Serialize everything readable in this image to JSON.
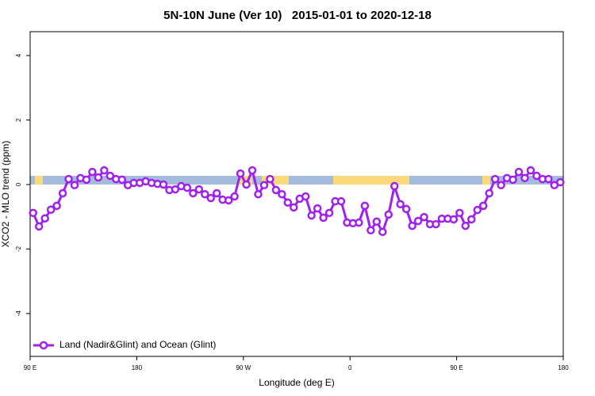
{
  "chart_data": {
    "type": "line",
    "title": "5N-10N June (Ver 10)   2015-01-01 to 2020-12-18",
    "x_label": "Longitude (deg E)",
    "y_label": "XCO2 - MLO trend (ppm)",
    "legend_position": "bottom-left",
    "xlim": [
      90,
      540
    ],
    "ylim": [
      -5.33,
      4.74
    ],
    "xticks": [
      {
        "value": 90,
        "label": "90 E"
      },
      180,
      {
        "value": 270,
        "label": "90 W"
      },
      {
        "value": 360,
        "label": "0"
      },
      {
        "value": 450,
        "label": "90 E"
      },
      {
        "value": 540,
        "label": "180"
      }
    ],
    "yticks": [
      -4,
      -2,
      0,
      2,
      4
    ],
    "x": [
      92.5,
      97.5,
      102.5,
      107.5,
      112.5,
      117.5,
      122.5,
      127.5,
      132.5,
      137.5,
      142.5,
      147.5,
      152.5,
      157.5,
      162.5,
      167.5,
      172.5,
      177.5,
      182.5,
      187.5,
      192.5,
      197.5,
      202.5,
      207.5,
      212.5,
      217.5,
      222.5,
      227.5,
      232.5,
      237.5,
      242.5,
      247.5,
      252.5,
      257.5,
      262.5,
      267.5,
      272.5,
      277.5,
      282.5,
      287.5,
      292.5,
      297.5,
      302.5,
      307.5,
      312.5,
      317.5,
      322.5,
      327.5,
      332.5,
      337.5,
      342.5,
      347.5,
      352.5,
      357.5,
      362.5,
      367.5,
      372.5,
      377.5,
      382.5,
      387.5,
      392.5,
      397.5,
      402.5,
      407.5,
      412.5,
      417.5,
      422.5,
      427.5,
      432.5,
      437.5,
      442.5,
      447.5,
      452.5,
      457.5,
      462.5,
      467.5,
      472.5,
      477.5,
      482.5,
      487.5,
      492.5,
      497.5,
      502.5,
      507.5,
      512.5,
      517.5,
      522.5,
      527.5,
      532.5,
      537.5
    ],
    "series": [
      {
        "name": "Land (Nadir&Glint) and Ocean (Glint)",
        "color": "#a020f0",
        "values": [
          -0.88,
          -1.3,
          -1.05,
          -0.78,
          -0.66,
          -0.27,
          0.17,
          -0.02,
          0.2,
          0.15,
          0.39,
          0.22,
          0.44,
          0.27,
          0.17,
          0.15,
          -0.02,
          0.05,
          0.05,
          0.1,
          0.05,
          0.02,
          0,
          -0.17,
          -0.15,
          -0.05,
          -0.1,
          -0.27,
          -0.15,
          -0.3,
          -0.42,
          -0.27,
          -0.47,
          -0.49,
          -0.37,
          0.34,
          0,
          0.44,
          -0.3,
          -0.02,
          0.17,
          -0.17,
          -0.3,
          -0.56,
          -0.71,
          -0.44,
          -0.37,
          -0.96,
          -0.74,
          -1.03,
          -0.88,
          -0.52,
          -0.52,
          -1.18,
          -1.2,
          -1.18,
          -0.66,
          -1.42,
          -1.15,
          -1.47,
          -0.93,
          -0.05,
          -0.61,
          -0.76,
          -1.28,
          -1.13,
          -1.01,
          -1.23,
          -1.23,
          -1.06,
          -1.06,
          -1.08,
          -0.88,
          -1.28,
          -1.08,
          -0.79,
          -0.66,
          -0.27,
          0.17,
          -0.02,
          0.2,
          0.15,
          0.39,
          0.2,
          0.44,
          0.27,
          0.17,
          0.17,
          -0.02,
          0.07
        ]
      }
    ]
  }
}
